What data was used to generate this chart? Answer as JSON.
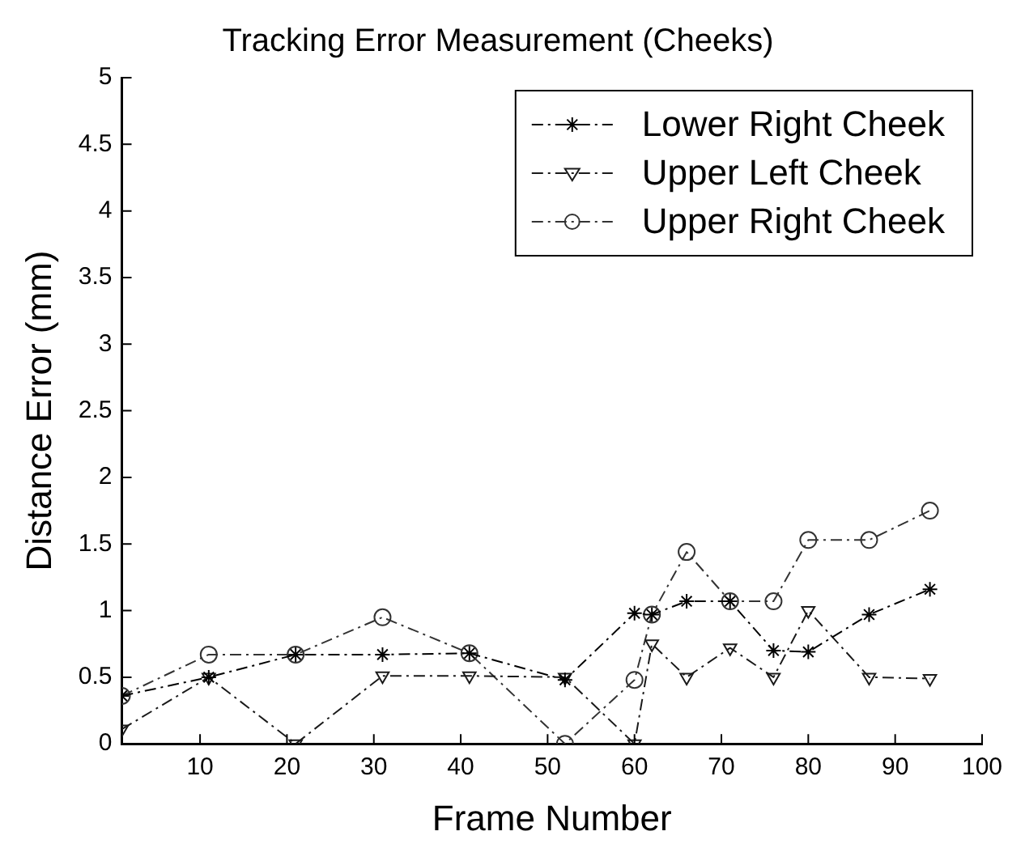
{
  "chart_data": {
    "type": "line",
    "title": "Tracking Error Measurement (Cheeks)",
    "xlabel": "Frame Number",
    "ylabel": "Distance Error (mm)",
    "x": [
      1,
      11,
      21,
      31,
      41,
      52,
      60,
      62,
      66,
      71,
      76,
      80,
      87,
      94
    ],
    "xlim": [
      1,
      100
    ],
    "xticks": [
      10,
      20,
      30,
      40,
      50,
      60,
      70,
      80,
      90,
      100
    ],
    "ylim": [
      0,
      5
    ],
    "yticks": [
      0,
      0.5,
      1,
      1.5,
      2,
      2.5,
      3,
      3.5,
      4,
      4.5,
      5
    ],
    "grid": false,
    "legend": "top right",
    "line_style": "dashed",
    "series": [
      {
        "name": "Lower Right Cheek",
        "color": "#000000",
        "marker": "cross",
        "values": [
          0.36,
          0.5,
          0.67,
          0.67,
          0.68,
          0.48,
          0.98,
          0.97,
          1.07,
          1.07,
          0.7,
          0.69,
          0.97,
          1.16
        ]
      },
      {
        "name": "Upper Left Cheek",
        "color": "#1a1a1a",
        "marker": "triangle",
        "values": [
          0.11,
          0.5,
          0,
          0.51,
          0.51,
          0.5,
          0,
          0.75,
          0.5,
          0.72,
          0.5,
          1.0,
          0.5,
          0.49
        ]
      },
      {
        "name": "Upper Right Cheek",
        "color": "#333333",
        "marker": "circle",
        "values": [
          0.36,
          0.67,
          0.67,
          0.95,
          0.68,
          0,
          0.48,
          0.97,
          1.44,
          1.07,
          1.07,
          1.53,
          1.53,
          1.75
        ]
      }
    ]
  }
}
